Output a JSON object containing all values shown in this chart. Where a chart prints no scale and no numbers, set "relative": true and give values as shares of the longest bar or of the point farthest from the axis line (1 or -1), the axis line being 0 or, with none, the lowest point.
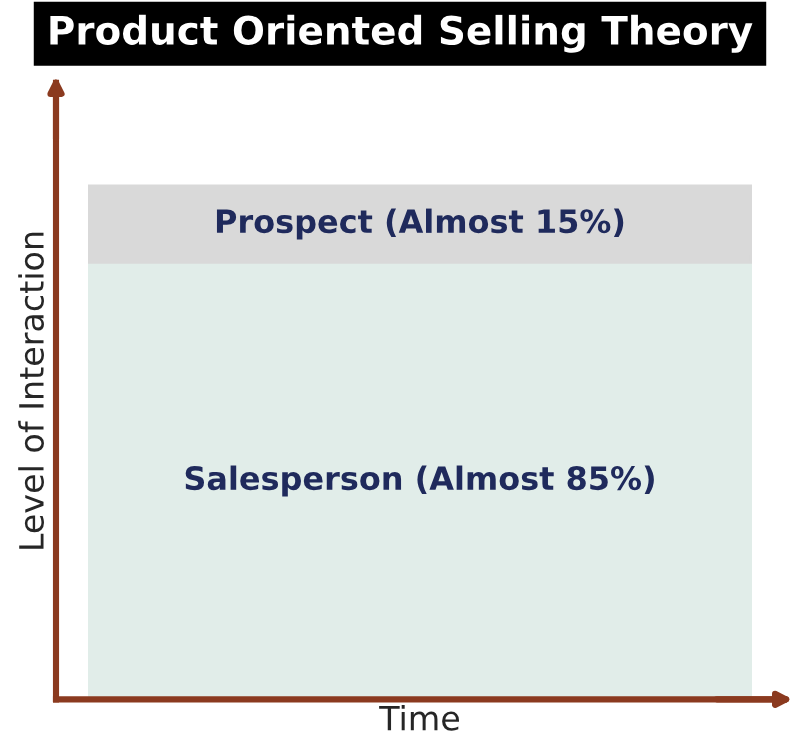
{
  "chart_data": {
    "type": "bar",
    "title": "Product Oriented Selling Theory",
    "xlabel": "Time",
    "ylabel": "Level of Interaction",
    "categories": [
      null
    ],
    "stacked": true,
    "relative": true,
    "legend": false,
    "series": [
      {
        "name": "Salesperson (Almost 85%)",
        "color": "#e1ede9",
        "values": [
          0.85
        ]
      },
      {
        "name": "Prospect (Almost 15%)",
        "color": "#d9d9d9",
        "values": [
          0.15
        ]
      }
    ]
  }
}
